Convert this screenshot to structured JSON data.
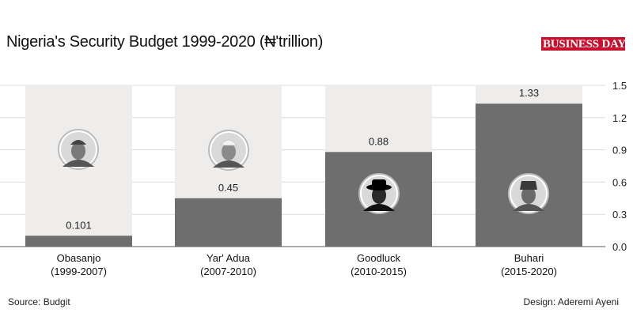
{
  "header": {
    "title": "Nigeria's Security Budget 1999-2020 (₦'trillion)",
    "logo_text": "BUSINESS DAY"
  },
  "footer": {
    "source": "Source: Budgit",
    "design": "Design: Aderemi Ayeni"
  },
  "colors": {
    "bar": "#6e6e6e",
    "bar_background": "#eeedec",
    "logo": "#c8102e"
  },
  "chart_data": {
    "type": "bar",
    "title": "Nigeria's Security Budget 1999-2020 (₦'trillion)",
    "categories": [
      {
        "name": "Obasanjo",
        "period": "(1999-2007)"
      },
      {
        "name": "Yar' Adua",
        "period": "(2007-2010)"
      },
      {
        "name": "Goodluck",
        "period": "(2010-2015)"
      },
      {
        "name": "Buhari",
        "period": "(2015-2020)"
      }
    ],
    "values": [
      0.101,
      0.45,
      0.88,
      1.33
    ],
    "value_labels": [
      "0.101",
      "0.45",
      "0.88",
      "1.33"
    ],
    "ylim": [
      0,
      1.5
    ],
    "yticks": [
      "0.0",
      "0.3",
      "0.6",
      "0.9",
      "1.2",
      "1.5"
    ],
    "grid": true,
    "y_axis_side": "right",
    "portraits": [
      "portrait-obasanjo",
      "portrait-yaradua",
      "portrait-goodluck",
      "portrait-buhari"
    ]
  }
}
